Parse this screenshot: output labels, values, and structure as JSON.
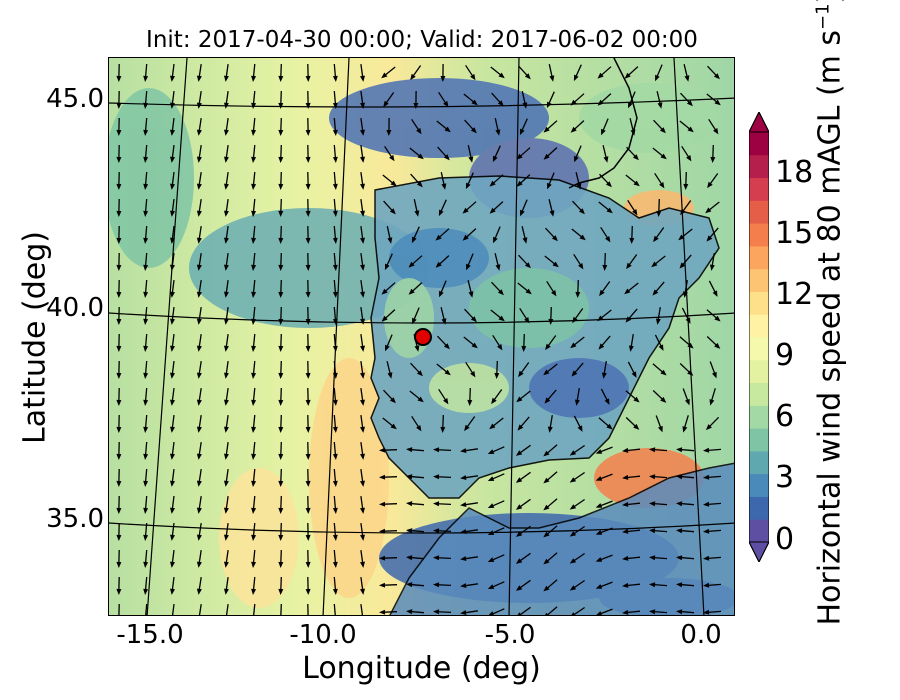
{
  "title": "Init: 2017-04-30 00:00; Valid: 2017-06-02 00:00",
  "x_axis": {
    "label": "Longitude (deg)",
    "ticks": [
      "-15.0",
      "-10.0",
      "-5.0",
      "0.0"
    ]
  },
  "y_axis": {
    "label": "Latitude (deg)",
    "ticks": [
      "45.0",
      "40.0",
      "35.0"
    ]
  },
  "colorbar": {
    "label_main": "Horizontal wind speed at 80 mAGL (m s",
    "label_sup": "−1",
    "label_end": ")",
    "ticks": [
      "0",
      "3",
      "6",
      "9",
      "12",
      "15",
      "18"
    ],
    "range": [
      0,
      20
    ],
    "colors": [
      "#5e4fa2",
      "#3d68ae",
      "#4a8abb",
      "#5fa8b0",
      "#7fc5a5",
      "#a3d9a4",
      "#c6e89f",
      "#e3f2a0",
      "#f4f9ac",
      "#fff2a4",
      "#fedf8a",
      "#fdc474",
      "#fca55e",
      "#f47f4c",
      "#e55f48",
      "#d53e4f",
      "#b51f4b",
      "#9e0142"
    ]
  },
  "marker": {
    "label": "site",
    "color": "#e00000"
  }
}
